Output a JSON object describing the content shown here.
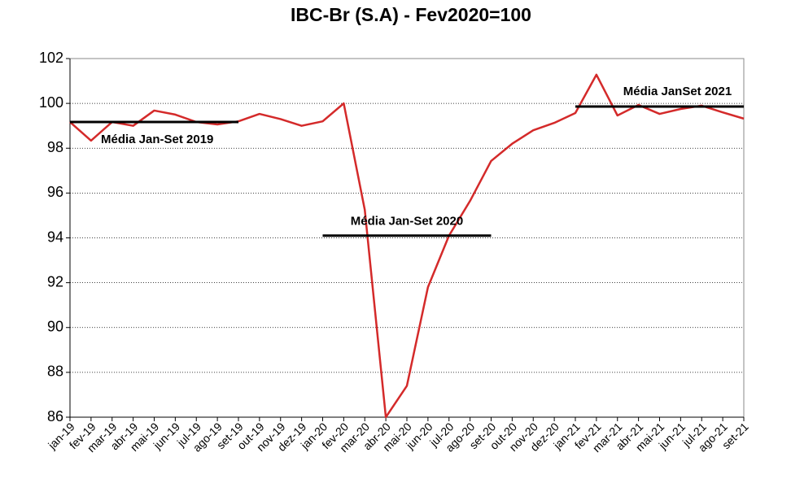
{
  "chart_data": {
    "type": "line",
    "title": "IBC-Br (S.A) - Fev2020=100",
    "categories": [
      "jan-19",
      "fev-19",
      "mar-19",
      "abr-19",
      "mai-19",
      "jun-19",
      "jul-19",
      "ago-19",
      "set-19",
      "out-19",
      "nov-19",
      "dez-19",
      "jan-20",
      "fev-20",
      "mar-20",
      "abr-20",
      "mai-20",
      "jun-20",
      "jul-20",
      "ago-20",
      "set-20",
      "out-20",
      "nov-20",
      "dez-20",
      "jan-21",
      "fev-21",
      "mar-21",
      "abr-21",
      "mai-21",
      "jun-21",
      "jul-21",
      "ago-21",
      "set-21"
    ],
    "values": [
      99.17,
      98.34,
      99.17,
      99.0,
      99.68,
      99.5,
      99.17,
      99.06,
      99.2,
      99.53,
      99.3,
      99.0,
      99.2,
      100.0,
      95.25,
      86.0,
      87.4,
      91.8,
      94.1,
      95.65,
      97.43,
      98.2,
      98.8,
      99.13,
      99.57,
      101.28,
      99.46,
      99.93,
      99.53,
      99.75,
      99.9,
      99.6,
      99.32
    ],
    "color": "#d42a2a",
    "series": [
      {
        "name": "Média Jan-Set 2019",
        "color": "#000000",
        "values": [
          99.17,
          99.17,
          99.17,
          99.17,
          99.17,
          99.17,
          99.17,
          99.17,
          99.17,
          null,
          null,
          null,
          null,
          null,
          null,
          null,
          null,
          null,
          null,
          null,
          null,
          null,
          null,
          null,
          null,
          null,
          null,
          null,
          null,
          null,
          null,
          null,
          null
        ]
      },
      {
        "name": "Média Jan-Set 2020",
        "color": "#000000",
        "values": [
          null,
          null,
          null,
          null,
          null,
          null,
          null,
          null,
          null,
          null,
          null,
          null,
          94.1,
          94.1,
          94.1,
          94.1,
          94.1,
          94.1,
          94.1,
          94.1,
          94.1,
          null,
          null,
          null,
          null,
          null,
          null,
          null,
          null,
          null,
          null,
          null,
          null
        ]
      },
      {
        "name": "Média JanSet 2021",
        "color": "#000000",
        "values": [
          null,
          null,
          null,
          null,
          null,
          null,
          null,
          null,
          null,
          null,
          null,
          null,
          null,
          null,
          null,
          null,
          null,
          null,
          null,
          null,
          null,
          null,
          null,
          null,
          99.86,
          99.86,
          99.86,
          99.86,
          99.86,
          99.86,
          99.86,
          99.86,
          99.86
        ]
      }
    ],
    "ylim": [
      86,
      102
    ],
    "yticks": [
      86,
      88,
      90,
      92,
      94,
      96,
      98,
      100,
      102
    ],
    "grid": true
  }
}
